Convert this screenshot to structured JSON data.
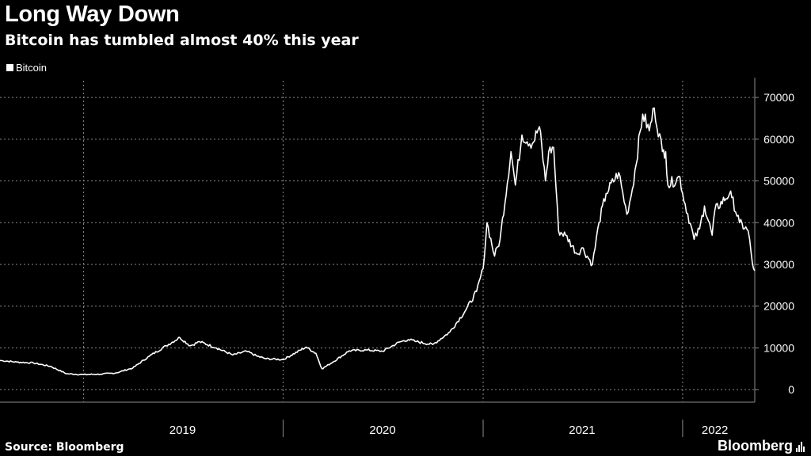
{
  "header": {
    "title": "Long Way Down",
    "subtitle": "Bitcoin has tumbled almost 40% this year"
  },
  "legend": {
    "label": "Bitcoin",
    "color": "#ffffff"
  },
  "footer": {
    "source": "Source: Bloomberg",
    "brand": "Bloomberg",
    "brand_icon": "bar-chart-icon"
  },
  "colors": {
    "background": "#000000",
    "line": "#ffffff",
    "grid": "#8c8c8c"
  },
  "chart_data": {
    "type": "line",
    "title": "Long Way Down",
    "subtitle": "Bitcoin has tumbled almost 40% this year",
    "xlabel": "",
    "ylabel": "",
    "x_range": [
      "2018-08-01",
      "2022-05-13"
    ],
    "ylim": [
      -3000,
      74000
    ],
    "y_ticks": [
      0,
      10000,
      20000,
      30000,
      40000,
      50000,
      60000,
      70000
    ],
    "y_tick_labels": [
      "0",
      "10000",
      "20000",
      "30000",
      "40000",
      "50000",
      "60000",
      "70000"
    ],
    "x_tick_labels": [
      {
        "label": "2019",
        "at": "2019-07-01"
      },
      {
        "label": "2020",
        "at": "2020-07-01"
      },
      {
        "label": "2021",
        "at": "2021-07-01"
      },
      {
        "label": "2022",
        "at": "2022-03-01"
      }
    ],
    "x_separators": [
      "2020-01-01",
      "2021-01-01",
      "2022-01-01"
    ],
    "grid": true,
    "legend_position": "top-left",
    "series": [
      {
        "name": "Bitcoin",
        "x": [
          "2018-08-01",
          "2018-09-01",
          "2018-10-01",
          "2018-11-01",
          "2018-12-01",
          "2019-01-01",
          "2019-02-01",
          "2019-03-01",
          "2019-04-01",
          "2019-05-01",
          "2019-06-01",
          "2019-06-26",
          "2019-07-15",
          "2019-08-01",
          "2019-09-01",
          "2019-10-01",
          "2019-10-26",
          "2019-11-15",
          "2019-12-01",
          "2020-01-01",
          "2020-02-12",
          "2020-03-01",
          "2020-03-12",
          "2020-04-01",
          "2020-05-01",
          "2020-06-01",
          "2020-07-01",
          "2020-08-01",
          "2020-08-17",
          "2020-09-01",
          "2020-10-01",
          "2020-11-01",
          "2020-12-01",
          "2020-12-20",
          "2021-01-01",
          "2021-01-08",
          "2021-01-22",
          "2021-02-01",
          "2021-02-21",
          "2021-03-01",
          "2021-03-13",
          "2021-04-01",
          "2021-04-14",
          "2021-04-25",
          "2021-05-01",
          "2021-05-10",
          "2021-05-19",
          "2021-06-01",
          "2021-06-22",
          "2021-07-01",
          "2021-07-20",
          "2021-08-01",
          "2021-08-14",
          "2021-09-06",
          "2021-09-21",
          "2021-10-01",
          "2021-10-20",
          "2021-11-01",
          "2021-11-10",
          "2021-11-25",
          "2021-12-01",
          "2021-12-05",
          "2021-12-27",
          "2022-01-01",
          "2022-01-22",
          "2022-02-01",
          "2022-02-10",
          "2022-02-24",
          "2022-03-01",
          "2022-03-28",
          "2022-04-01",
          "2022-04-15",
          "2022-05-01",
          "2022-05-09",
          "2022-05-13"
        ],
        "values": [
          7000,
          6600,
          6400,
          5600,
          3800,
          3600,
          3700,
          4000,
          5200,
          8000,
          10500,
          12500,
          10500,
          11500,
          10000,
          8300,
          9200,
          8000,
          7400,
          7200,
          10200,
          8700,
          5000,
          6600,
          9300,
          9500,
          9200,
          11400,
          12000,
          11500,
          10800,
          13800,
          19200,
          23500,
          29000,
          40000,
          32000,
          36000,
          57000,
          49000,
          61000,
          58900,
          63000,
          50000,
          57000,
          58000,
          38000,
          37000,
          32500,
          34000,
          30000,
          40000,
          47000,
          52000,
          42000,
          48000,
          66000,
          62000,
          67500,
          57000,
          57000,
          49000,
          51000,
          47000,
          36000,
          38500,
          44000,
          37000,
          43000,
          47000,
          46000,
          40000,
          38000,
          30000,
          28500
        ]
      }
    ]
  }
}
